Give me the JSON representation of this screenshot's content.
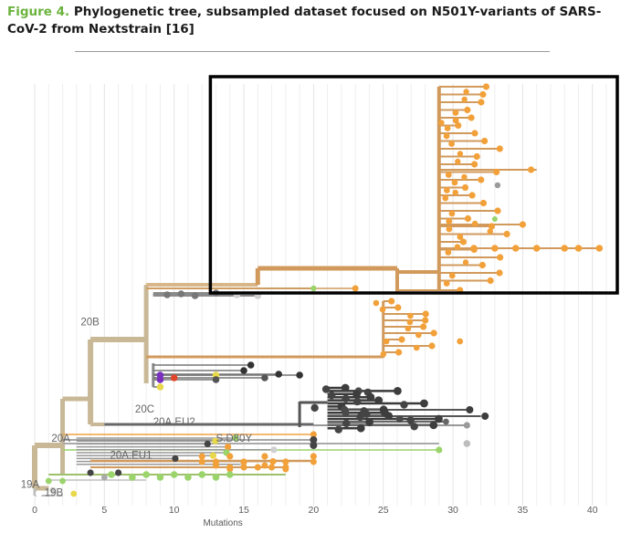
{
  "figure": {
    "label": "Figure 4.",
    "title": "Phylogenetic tree, subsampled dataset focused on N501Y-variants of SARS-CoV-2 from Nextstrain [16]"
  },
  "chart_data": {
    "type": "phylogenetic-tree",
    "xlabel": "Mutations",
    "xlim": [
      0,
      41
    ],
    "x_ticks": [
      0,
      5,
      10,
      15,
      20,
      25,
      30,
      35,
      40
    ],
    "grid": "vertical",
    "clade_labels": [
      {
        "name": "19A",
        "x": -1.0,
        "y": 0.03
      },
      {
        "name": "19B",
        "x": 0.7,
        "y": 0.01
      },
      {
        "name": "20A",
        "x": 1.2,
        "y": 0.14
      },
      {
        "name": "20B",
        "x": 3.3,
        "y": 0.42
      },
      {
        "name": "20C",
        "x": 7.2,
        "y": 0.21
      },
      {
        "name": "20A.EU2",
        "x": 8.5,
        "y": 0.18
      },
      {
        "name": "20A.EU1",
        "x": 5.4,
        "y": 0.1
      },
      {
        "name": "S.D80Y",
        "x": 13.0,
        "y": 0.14
      }
    ],
    "highlight_box": {
      "x_range": [
        12.6,
        41
      ],
      "y_range": [
        0.55,
        1.0
      ],
      "note": "N501Y clade"
    },
    "colors": {
      "n501y": "#f2a13a",
      "n501y_branch": "#d19a5c",
      "trunk": "#c9b896",
      "dark": "#4a4a4a",
      "grey": "#a9a9a9",
      "green": "#9ad46a",
      "yellow": "#e8d84a",
      "red": "#e0452a",
      "purple": "#7b2fbf"
    }
  }
}
